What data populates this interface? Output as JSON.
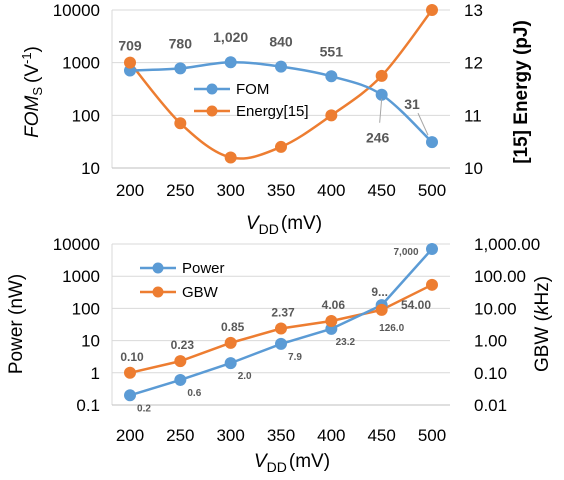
{
  "chart_data": [
    {
      "type": "line",
      "x": [
        200,
        250,
        300,
        350,
        400,
        450,
        500
      ],
      "xlabel_main": "V",
      "xlabel_sub": "DD",
      "xlabel_unit": "(mV)",
      "ylabel_left_main": "FOM",
      "ylabel_left_sub": "S",
      "ylabel_left_unit": "(V",
      "ylabel_left_sup": "-1",
      "ylabel_left_close": ")",
      "ylabel_right": "[15] Energy (pJ)",
      "yscale_left": "log",
      "ylim_left": [
        10,
        10000
      ],
      "yticks_left": [
        "10",
        "100",
        "1000",
        "10000"
      ],
      "ylim_right": [
        10,
        13
      ],
      "yticks_right": [
        "10",
        "11",
        "12",
        "13"
      ],
      "grid": true,
      "legend_position": "center",
      "series": [
        {
          "name": "FOM",
          "axis": "left",
          "color": "#5b9bd5",
          "values": [
            709,
            780,
            1020,
            840,
            551,
            246,
            31
          ],
          "labels": [
            "709",
            "780",
            "1,020",
            "840",
            "551",
            "246",
            "31"
          ]
        },
        {
          "name": "Energy[15]",
          "axis": "right",
          "color": "#ed7d31",
          "values": [
            12.0,
            10.85,
            10.2,
            10.4,
            11.0,
            11.75,
            13.0
          ]
        }
      ]
    },
    {
      "type": "line",
      "x": [
        200,
        250,
        300,
        350,
        400,
        450,
        500
      ],
      "xlabel_main": "V",
      "xlabel_sub": "DD",
      "xlabel_unit": "(mV)",
      "ylabel_left": "Power  (nW)",
      "ylabel_right_main": "GBW  (",
      "ylabel_right_italic": "k",
      "ylabel_right_unit": "Hz)",
      "yscale_left": "log",
      "ylim_left": [
        0.1,
        10000
      ],
      "yticks_left": [
        "0.1",
        "1",
        "10",
        "100",
        "1000",
        "10000"
      ],
      "yscale_right": "log",
      "ylim_right": [
        0.01,
        1000
      ],
      "yticks_right": [
        "0.01",
        "0.10",
        "1.00",
        "10.00",
        "100.00",
        "1,000.00"
      ],
      "grid": true,
      "legend_position": "top-left",
      "series": [
        {
          "name": "Power",
          "axis": "left",
          "color": "#5b9bd5",
          "values": [
            0.2,
            0.6,
            2.0,
            7.9,
            23.2,
            126.0,
            7000
          ],
          "labels": [
            "0.2",
            "0.6",
            "2.0",
            "7.9",
            "23.2",
            "126.0",
            "7,000"
          ]
        },
        {
          "name": "GBW",
          "axis": "right",
          "color": "#ed7d31",
          "values": [
            0.1,
            0.23,
            0.85,
            2.37,
            4.06,
            9.0,
            54.0
          ],
          "labels": [
            "0.10",
            "0.23",
            "0.85",
            "2.37",
            "4.06",
            "9...",
            "54.00"
          ]
        }
      ]
    }
  ]
}
